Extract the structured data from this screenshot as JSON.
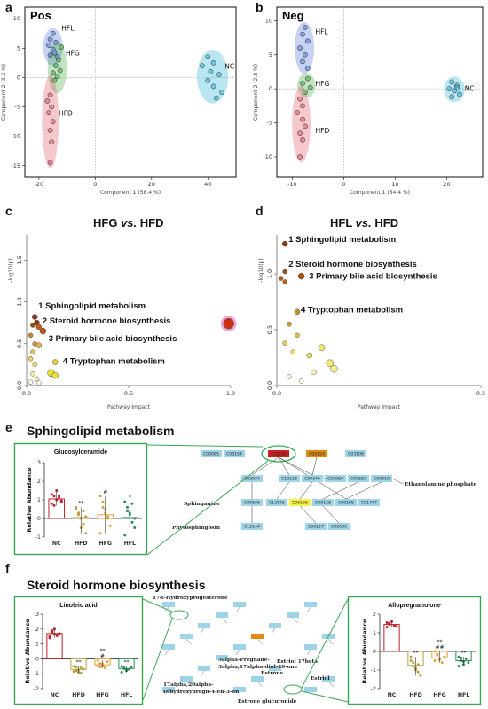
{
  "panels": {
    "a": "a",
    "b": "b",
    "c": "c",
    "d": "d",
    "e": "e",
    "f": "f"
  },
  "section_titles": {
    "e": "Sphingolipid metabolism",
    "f": "Steroid hormone biosynthesis"
  },
  "colors": {
    "HFL": "#5b7fd6",
    "HFG": "#4caf50",
    "HFD": "#e06070",
    "NC": "#38b6d8",
    "NC_bar": "#c0202a",
    "HFD_bar": "#b8a040",
    "HFG_bar": "#e0a040",
    "HFL_bar": "#2e8b57",
    "box_green": "#3aa655",
    "node_blue": "#9fd4e8",
    "node_red": "#cc2222",
    "node_orange": "#e08a10",
    "node_yellow": "#f5f04a"
  },
  "chart_data": [
    {
      "id": "pca-pos",
      "type": "scatter",
      "title": "Pos",
      "xlabel": "Component 1 (58.4 %)",
      "ylabel": "Component 2 (3.2 %)",
      "xlim": [
        -25,
        50
      ],
      "ylim": [
        -17,
        12
      ],
      "xticks": [
        -20,
        0,
        20,
        40
      ],
      "yticks": [
        10,
        5,
        0,
        -5,
        -10,
        -15
      ],
      "groups": [
        {
          "name": "HFL",
          "points": [
            [
              -15,
              7.5
            ],
            [
              -16,
              6.5
            ],
            [
              -14,
              6
            ],
            [
              -16.5,
              5.5
            ],
            [
              -15,
              4.8
            ],
            [
              -14.5,
              4.2
            ],
            [
              -16,
              3.8
            ],
            [
              -13.5,
              3.5
            ]
          ]
        },
        {
          "name": "HFG",
          "points": [
            [
              -12,
              5.2
            ],
            [
              -13,
              3
            ],
            [
              -14,
              2
            ],
            [
              -12.5,
              1.2
            ],
            [
              -15,
              0.8
            ],
            [
              -13.5,
              0.2
            ],
            [
              -14.5,
              -0.5
            ]
          ]
        },
        {
          "name": "HFD",
          "points": [
            [
              -16,
              -3
            ],
            [
              -17,
              -4
            ],
            [
              -15.5,
              -5
            ],
            [
              -16.5,
              -6
            ],
            [
              -15,
              -7.5
            ],
            [
              -16,
              -9
            ],
            [
              -15.5,
              -11
            ],
            [
              -16,
              -14.5
            ]
          ]
        },
        {
          "name": "NC",
          "points": [
            [
              40,
              3.5
            ],
            [
              42,
              2.5
            ],
            [
              38,
              2
            ],
            [
              41,
              1
            ],
            [
              44,
              0.5
            ],
            [
              40,
              -0.5
            ],
            [
              42,
              -1.5
            ],
            [
              45,
              -2.5
            ],
            [
              43,
              -3.5
            ]
          ]
        }
      ]
    },
    {
      "id": "pca-neg",
      "type": "scatter",
      "title": "Neg",
      "xlabel": "Component 1 (54.4 %)",
      "ylabel": "Component 2 (2.8 %)",
      "xlim": [
        -13,
        27
      ],
      "ylim": [
        -13,
        12
      ],
      "xticks": [
        -10,
        0,
        10,
        20
      ],
      "yticks": [
        10,
        5,
        0,
        -5,
        -10
      ],
      "groups": [
        {
          "name": "HFL",
          "points": [
            [
              -7.5,
              9
            ],
            [
              -8,
              8
            ],
            [
              -7,
              7
            ],
            [
              -8.5,
              6
            ],
            [
              -7.5,
              5
            ],
            [
              -8,
              4
            ],
            [
              -7,
              3
            ]
          ]
        },
        {
          "name": "HFG",
          "points": [
            [
              -7,
              1.5
            ],
            [
              -8,
              0.8
            ],
            [
              -6.5,
              0.2
            ],
            [
              -7.5,
              -0.5
            ]
          ]
        },
        {
          "name": "HFD",
          "points": [
            [
              -8.5,
              -1.5
            ],
            [
              -8,
              -2.5
            ],
            [
              -9,
              -3.5
            ],
            [
              -8,
              -4.5
            ],
            [
              -7.5,
              -5.5
            ],
            [
              -8.5,
              -6.5
            ],
            [
              -8,
              -7.5
            ],
            [
              -8.5,
              -10
            ]
          ]
        },
        {
          "name": "NC",
          "points": [
            [
              21,
              1
            ],
            [
              22,
              0.5
            ],
            [
              20.5,
              0
            ],
            [
              21.5,
              -0.3
            ],
            [
              22.5,
              -0.8
            ],
            [
              21,
              -1.2
            ],
            [
              22,
              0.2
            ]
          ]
        }
      ]
    },
    {
      "id": "pathway-hfg",
      "type": "scatter",
      "title": "HFG vs. HFD",
      "title_main": "HFG",
      "title_vs": "vs.",
      "title_ref": "HFD",
      "xlabel": "Pathway Impact",
      "ylabel": "-log10(p)",
      "xlim": [
        0,
        1.0
      ],
      "ylim": [
        0,
        1.8
      ],
      "xticks": [
        0.0,
        0.5,
        1.0
      ],
      "yticks": [
        0.0,
        0.5,
        1.0,
        1.5
      ],
      "points": [
        {
          "x": 0.04,
          "y": 0.82,
          "r": 3,
          "c": "#8b3a10"
        },
        {
          "x": 0.05,
          "y": 0.75,
          "r": 3,
          "c": "#8b3a10"
        },
        {
          "x": 0.03,
          "y": 0.72,
          "r": 2.5,
          "c": "#9a4a15"
        },
        {
          "x": 0.08,
          "y": 0.65,
          "r": 3.5,
          "c": "#c0501a"
        },
        {
          "x": 0.06,
          "y": 0.7,
          "r": 3,
          "c": "#c06020"
        },
        {
          "x": 0.02,
          "y": 0.6,
          "r": 2.5,
          "c": "#d08030"
        },
        {
          "x": 0.04,
          "y": 0.5,
          "r": 2.5,
          "c": "#d09a40"
        },
        {
          "x": 0.06,
          "y": 0.48,
          "r": 3,
          "c": "#e0b050"
        },
        {
          "x": 0.03,
          "y": 0.4,
          "r": 2.5,
          "c": "#e0c060"
        },
        {
          "x": 0.02,
          "y": 0.32,
          "r": 2.5,
          "c": "#e8d070"
        },
        {
          "x": 0.04,
          "y": 0.25,
          "r": 2.5,
          "c": "#f0e070"
        },
        {
          "x": 0.14,
          "y": 0.28,
          "r": 3,
          "c": "#e0d030"
        },
        {
          "x": 0.12,
          "y": 0.15,
          "r": 4,
          "c": "#e8e030"
        },
        {
          "x": 0.14,
          "y": 0.12,
          "r": 3.5,
          "c": "#e8e040"
        },
        {
          "x": 0.03,
          "y": 0.14,
          "r": 2.5,
          "c": "#f5f0a0"
        },
        {
          "x": 0.05,
          "y": 0.08,
          "r": 2.5,
          "c": "#faf6c8"
        },
        {
          "x": 0.02,
          "y": 0.04,
          "r": 2.5,
          "c": "#fbf9e0"
        },
        {
          "x": 0.06,
          "y": 0.03,
          "r": 2.5,
          "c": "#fefdf0"
        },
        {
          "x": 0.99,
          "y": 0.74,
          "r": 6,
          "c": "#cc3010",
          "ring": "#e060c0"
        }
      ],
      "labels": [
        {
          "num": "1",
          "text": "Sphingolipid metabolism",
          "x": 0.04,
          "y": 0.9
        },
        {
          "num": "2",
          "text": "Steroid hormone biosynthesis",
          "x": 0.06,
          "y": 0.72
        },
        {
          "num": "3",
          "text": "Primary bile acid biosynthesis",
          "x": 0.09,
          "y": 0.51
        },
        {
          "num": "4",
          "text": "Tryptophan metabolism",
          "x": 0.16,
          "y": 0.24
        }
      ]
    },
    {
      "id": "pathway-hfl",
      "type": "scatter",
      "title": "HFL vs. HFD",
      "title_main": "HFL",
      "title_vs": "vs.",
      "title_ref": "HFD",
      "xlabel": "Pathway Impact",
      "ylabel": "-log10(p)",
      "xlim": [
        0,
        0.5
      ],
      "ylim": [
        0,
        1.35
      ],
      "xticks": [
        0.0,
        0.5,
        1.0
      ],
      "yticks": [
        0.0,
        0.5,
        1.0
      ],
      "points": [
        {
          "x": 0.02,
          "y": 1.27,
          "r": 3,
          "c": "#8b3a10"
        },
        {
          "x": 0.02,
          "y": 1.02,
          "r": 2.5,
          "c": "#a04a10"
        },
        {
          "x": 0.01,
          "y": 0.96,
          "r": 2.5,
          "c": "#b05a18"
        },
        {
          "x": 0.06,
          "y": 0.98,
          "r": 3.5,
          "c": "#b05010"
        },
        {
          "x": 0.02,
          "y": 0.93,
          "r": 2.5,
          "c": "#c06020"
        },
        {
          "x": 0.05,
          "y": 0.66,
          "r": 3,
          "c": "#c89028"
        },
        {
          "x": 0.03,
          "y": 0.55,
          "r": 2.5,
          "c": "#d0a030"
        },
        {
          "x": 0.05,
          "y": 0.45,
          "r": 2.5,
          "c": "#e0c040"
        },
        {
          "x": 0.02,
          "y": 0.38,
          "r": 2.5,
          "c": "#e8d050"
        },
        {
          "x": 0.04,
          "y": 0.3,
          "r": 2.5,
          "c": "#f0e060"
        },
        {
          "x": 0.08,
          "y": 0.27,
          "r": 3,
          "c": "#e8e050"
        },
        {
          "x": 0.11,
          "y": 0.34,
          "r": 3.5,
          "c": "#f0e860"
        },
        {
          "x": 0.13,
          "y": 0.2,
          "r": 4,
          "c": "#f0ea70"
        },
        {
          "x": 0.14,
          "y": 0.15,
          "r": 4,
          "c": "#f4ee90"
        },
        {
          "x": 0.09,
          "y": 0.12,
          "r": 3,
          "c": "#f6f2b0"
        },
        {
          "x": 0.03,
          "y": 0.08,
          "r": 2.5,
          "c": "#faf8d8"
        },
        {
          "x": 0.06,
          "y": 0.04,
          "r": 2.5,
          "c": "#fefdf0"
        }
      ],
      "labels": [
        {
          "num": "1",
          "text": "Sphingolipid metabolism",
          "x": 0.02,
          "y": 1.27
        },
        {
          "num": "2",
          "text": "Steroid hormone biosynthesis",
          "x": 0.02,
          "y": 1.05
        },
        {
          "num": "3",
          "text": "Primary bile acid biosynthesis",
          "x": 0.07,
          "y": 0.94
        },
        {
          "num": "4",
          "text": "Tryptophan metabolism",
          "x": 0.05,
          "y": 0.64
        }
      ]
    },
    {
      "id": "bar-glucosylceramide",
      "type": "bar",
      "title": "Glucosylceramide",
      "ylabel": "Relative Abundance",
      "ylim": [
        -1,
        3
      ],
      "yticks": [
        3,
        2,
        1,
        0,
        -1
      ],
      "categories": [
        "NC",
        "HFD",
        "HFG",
        "HFL"
      ],
      "values": [
        1.05,
        0.05,
        0.2,
        0.05
      ],
      "sig": [
        "",
        "**",
        "#",
        "*"
      ],
      "points": [
        [
          0.8,
          1.2,
          1.5,
          1.1,
          0.9,
          1.3,
          0.7,
          1.0,
          1.2,
          0.95
        ],
        [
          0.5,
          0.3,
          0.0,
          -0.3,
          -0.8,
          0.6,
          0.2,
          -0.5,
          0.4,
          0.1
        ],
        [
          1.2,
          0.9,
          0.3,
          0.0,
          -0.4,
          -0.8,
          0.6,
          0.5,
          0.1
        ],
        [
          0.9,
          0.6,
          0.2,
          -0.2,
          -0.5,
          -0.9,
          0.4,
          0.3,
          0.8,
          0.0
        ]
      ]
    },
    {
      "id": "bar-linoleic",
      "type": "bar",
      "title": "Linoleic acid",
      "ylabel": "Relative Abundance",
      "ylim": [
        -2,
        3
      ],
      "yticks": [
        3,
        2,
        1,
        0,
        -1,
        -2
      ],
      "categories": [
        "NC",
        "HFD",
        "HFG",
        "HFL"
      ],
      "values": [
        1.7,
        -0.7,
        -0.4,
        -0.65
      ],
      "sig": [
        "",
        "**",
        "**\n#",
        "**"
      ],
      "points": [
        [
          1.5,
          1.8,
          2.0,
          1.6,
          1.7,
          1.4,
          1.9,
          1.65,
          1.55
        ],
        [
          -0.5,
          -0.8,
          -0.9,
          -0.6,
          -0.7,
          -0.85,
          -0.55,
          -0.75,
          -0.95
        ],
        [
          -0.1,
          -0.3,
          -0.5,
          -0.6,
          -0.2,
          -0.45,
          -0.55,
          -0.35
        ],
        [
          -0.5,
          -0.6,
          -0.8,
          -0.7,
          -0.55,
          -0.9,
          -0.65,
          -0.75
        ]
      ]
    },
    {
      "id": "bar-allopregnanolone",
      "type": "bar",
      "title": "Allopregnanolone",
      "ylabel": "Relative Abundance",
      "ylim": [
        -2,
        2
      ],
      "yticks": [
        2,
        1,
        0,
        -1,
        -2
      ],
      "categories": [
        "NC",
        "HFD",
        "HFG",
        "HFL"
      ],
      "values": [
        1.45,
        -0.75,
        -0.35,
        -0.5
      ],
      "sig": [
        "",
        "**",
        "**\n##",
        "**"
      ],
      "points": [
        [
          1.3,
          1.5,
          1.6,
          1.4,
          1.35,
          1.55,
          1.45
        ],
        [
          -0.3,
          -0.6,
          -0.9,
          -1.1,
          -1.3,
          -0.5,
          -0.8,
          -1.0,
          -0.7
        ],
        [
          0.0,
          -0.2,
          -0.4,
          -0.6,
          -0.3,
          -0.5,
          -0.15,
          -0.45
        ],
        [
          -0.3,
          -0.5,
          -0.7,
          -0.4,
          -0.6,
          -0.8,
          -0.35,
          -0.55
        ]
      ]
    }
  ],
  "network_e": {
    "nodes": [
      {
        "id": "C00065",
        "hl": ""
      },
      {
        "id": "C00154",
        "hl": ""
      },
      {
        "id": "C01190",
        "hl": "red"
      },
      {
        "id": "C06124",
        "hl": "orange"
      },
      {
        "id": "C03108",
        "hl": ""
      },
      {
        "id": "C02934",
        "hl": ""
      },
      {
        "id": "C12126",
        "hl": ""
      },
      {
        "id": "C00346",
        "hl": ""
      },
      {
        "id": "C02960",
        "hl": ""
      },
      {
        "id": "C00550",
        "hl": ""
      },
      {
        "id": "C00319",
        "hl": ""
      },
      {
        "id": "C00836",
        "hl": ""
      },
      {
        "id": "C12145",
        "hl": ""
      },
      {
        "id": "C06126",
        "hl": "yellow"
      },
      {
        "id": "C06128",
        "hl": ""
      },
      {
        "id": "C00195",
        "hl": ""
      },
      {
        "id": "C01747",
        "hl": ""
      },
      {
        "id": "C12144",
        "hl": ""
      },
      {
        "id": "C06127",
        "hl": ""
      },
      {
        "id": "C02686",
        "hl": ""
      }
    ],
    "labels": {
      "ethanolamine": "Ethanolamine phosphate",
      "sphinganine": "Sphinganine",
      "phytosphingosin": "Phytosphingosin"
    }
  },
  "network_f": {
    "labels": {
      "hydroxy": "17α-Hydroxyprogesterone",
      "estriol_17beta": "Estriol 17beta",
      "estriol": "Estriol",
      "estrone_glucuronide": "Estrone glucuronide",
      "estrone": "Estrone",
      "sulpha_preg": "5alpha-Pregnane-",
      "sulpha_diol": "3alpha,17alpha-diol-20-one",
      "dihydroxy_1": "17alpha,20alpha-",
      "dihydroxy_2": "Dihydroxypregn-4-en-3-on"
    }
  }
}
